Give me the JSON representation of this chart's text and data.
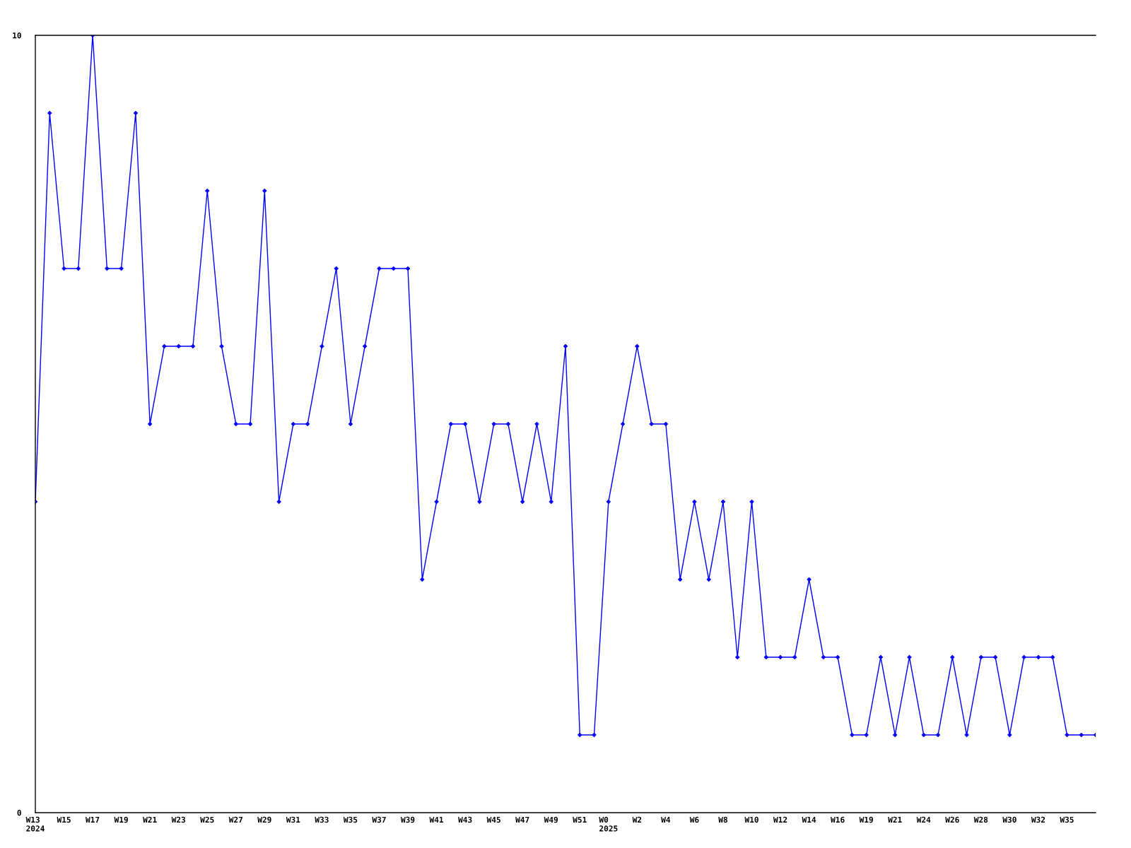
{
  "chart_data": {
    "type": "line",
    "categories": [
      "W13\n2024",
      null,
      "W15",
      null,
      "W17",
      null,
      "W19",
      null,
      "W21",
      null,
      "W23",
      null,
      "W25",
      null,
      "W27",
      null,
      "W29",
      null,
      "W31",
      null,
      "W33",
      null,
      "W35",
      null,
      "W37",
      null,
      "W39",
      null,
      "W41",
      null,
      "W43",
      null,
      "W45",
      null,
      "W47",
      null,
      "W49",
      null,
      "W51",
      null,
      "W0\n2025",
      null,
      "W2",
      null,
      "W4",
      null,
      "W6",
      null,
      "W8",
      null,
      "W10",
      null,
      "W12",
      null,
      "W14",
      null,
      "W16",
      null,
      "W19",
      null,
      "W21",
      null,
      "W24",
      null,
      "W26",
      null,
      "W28",
      null,
      "W30",
      null,
      "W32",
      null,
      "W35",
      null,
      null
    ],
    "values": [
      4,
      9,
      7,
      7,
      10,
      7,
      7,
      9,
      5,
      6,
      6,
      6,
      8,
      6,
      5,
      5,
      8,
      4,
      5,
      5,
      6,
      7,
      5,
      6,
      7,
      7,
      7,
      3,
      4,
      5,
      5,
      4,
      5,
      5,
      4,
      5,
      4,
      6,
      1,
      1,
      4,
      5,
      6,
      5,
      5,
      3,
      4,
      3,
      4,
      2,
      4,
      2,
      2,
      2,
      3,
      2,
      2,
      1,
      1,
      2,
      1,
      2,
      1,
      1,
      2,
      1,
      2,
      2,
      1,
      2,
      2,
      2,
      1,
      1,
      1
    ],
    "color": "#0000ff",
    "ylim": [
      0,
      10
    ],
    "yticks": [
      0,
      10
    ],
    "marker": "diamond",
    "line_style": "solid"
  }
}
